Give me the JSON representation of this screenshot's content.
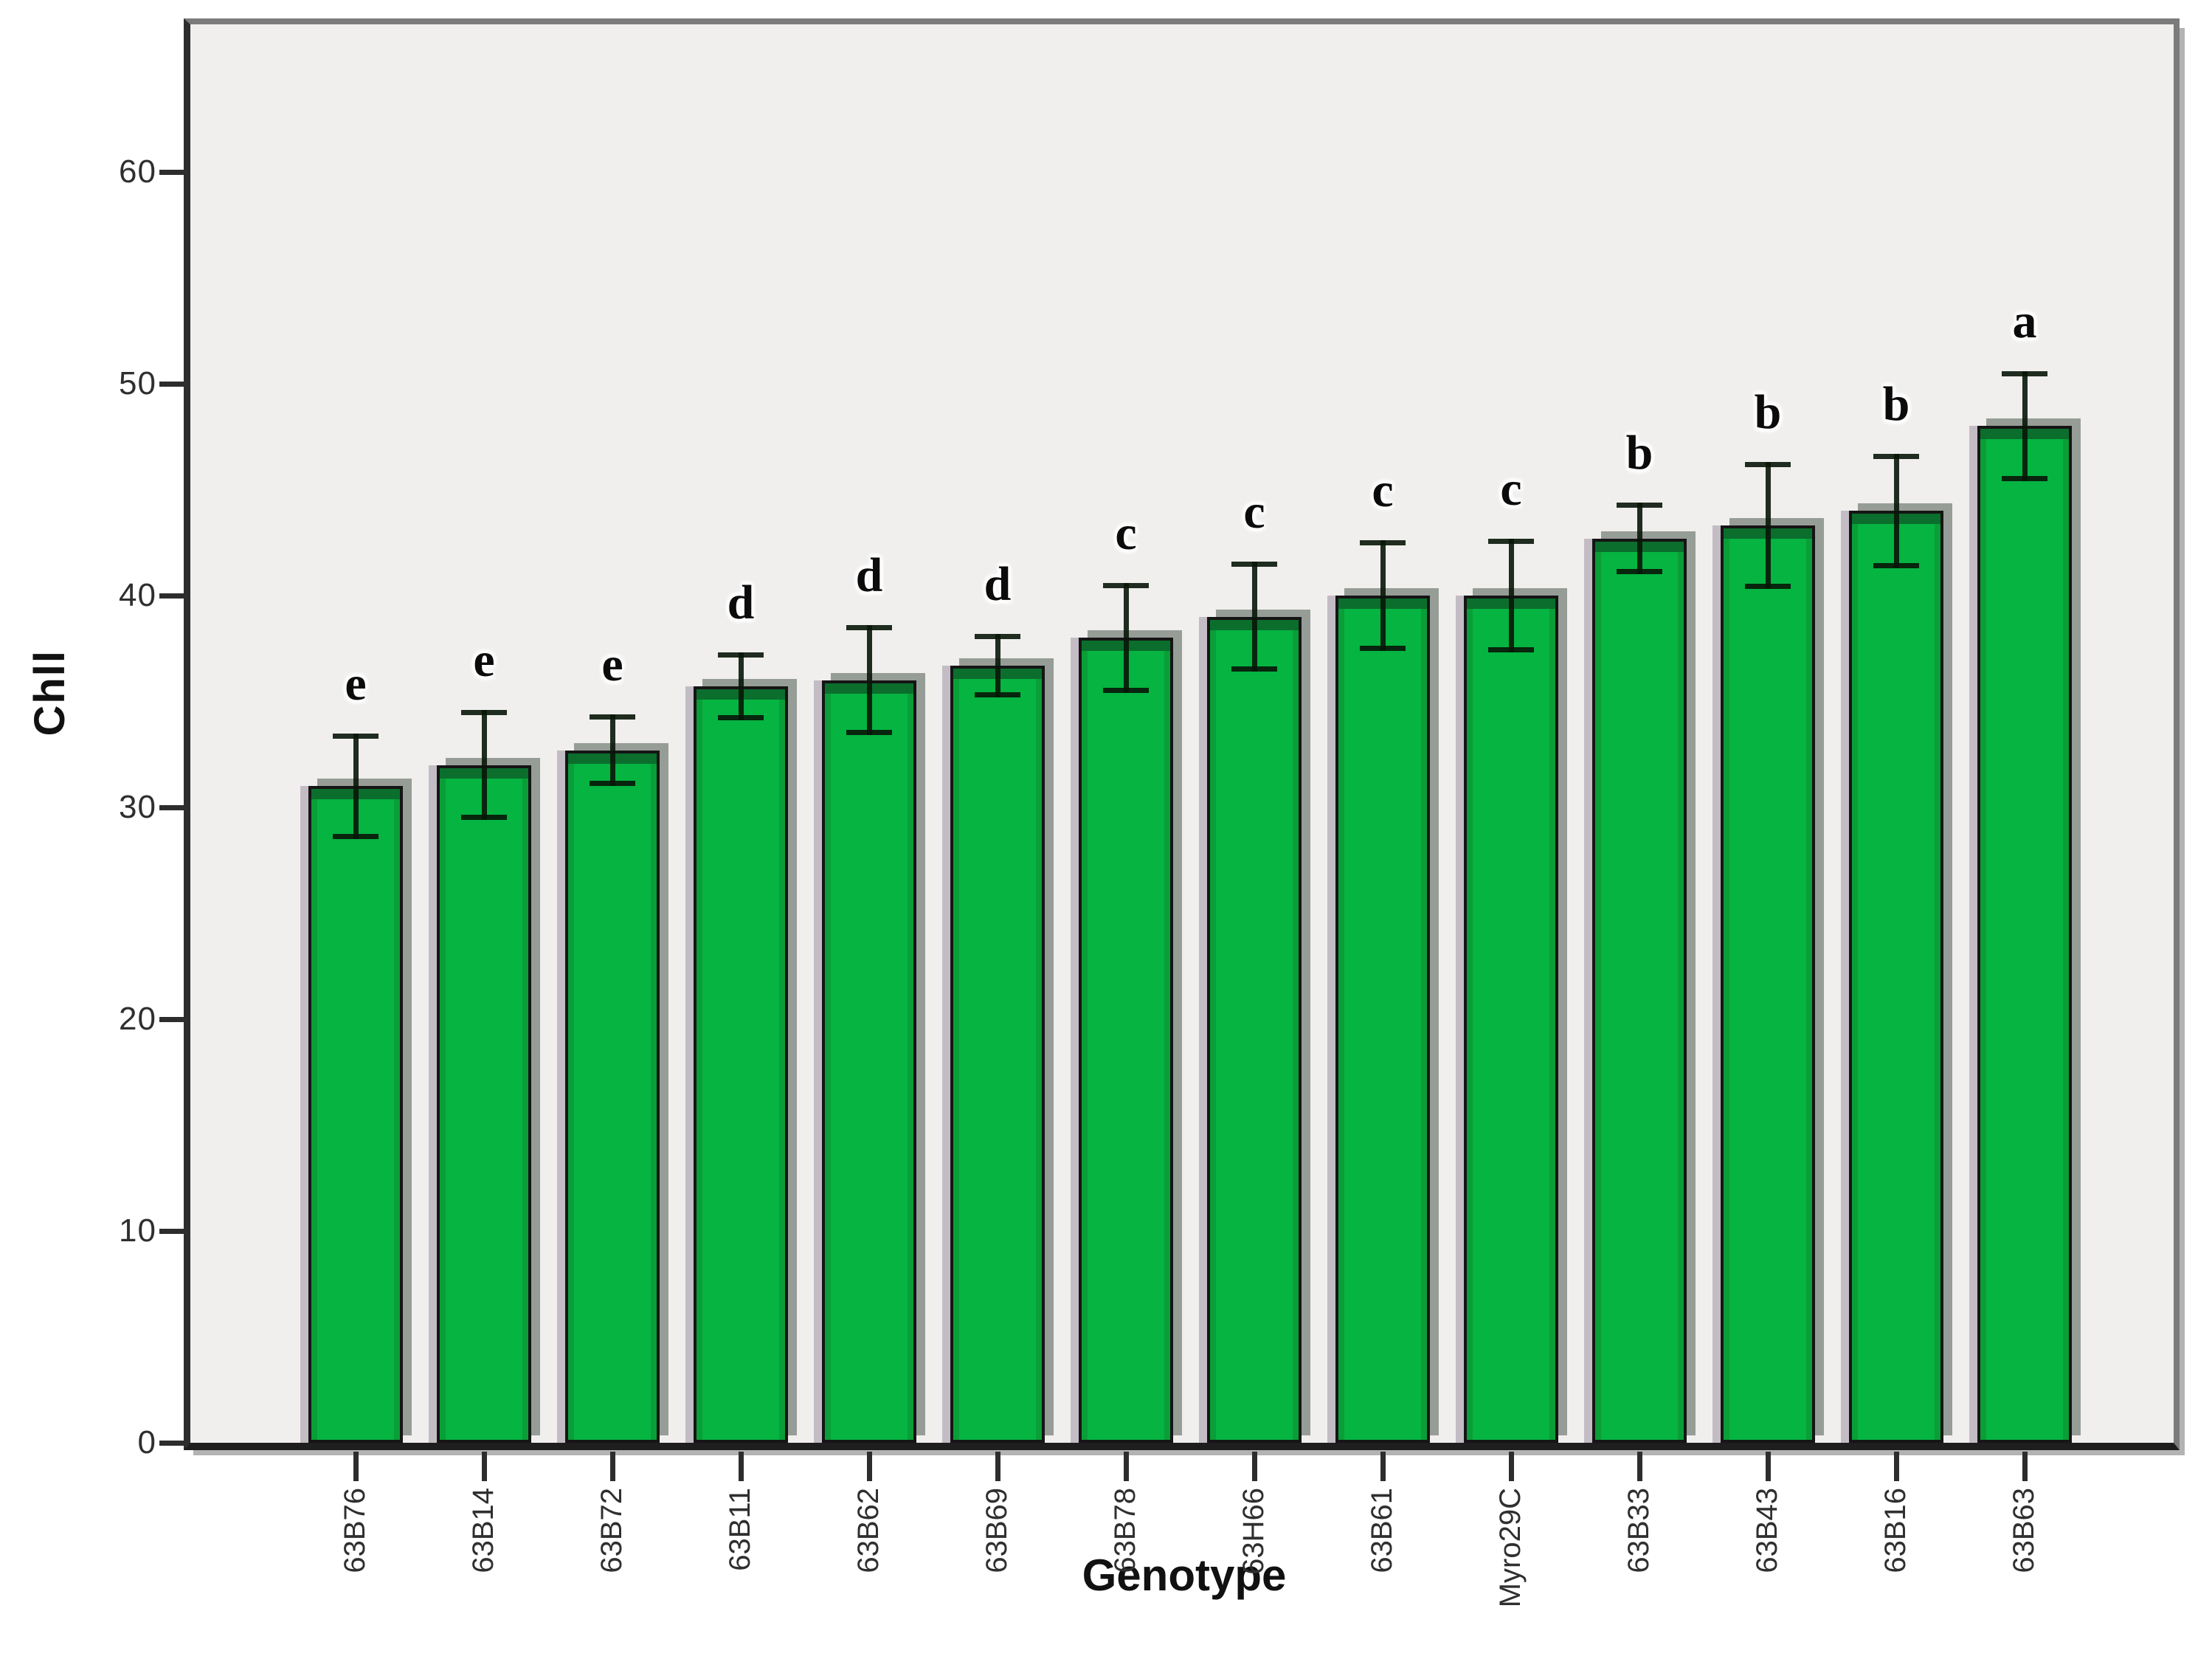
{
  "chart_data": {
    "type": "bar",
    "title": "",
    "xlabel": "Genotype",
    "ylabel": "Chll",
    "categories": [
      "63B76",
      "63B14",
      "63B72",
      "63B11",
      "63B62",
      "63B69",
      "63B78",
      "63H66",
      "63B61",
      "Myro29C",
      "63B33",
      "63B43",
      "63B16",
      "63B63"
    ],
    "values": [
      31,
      32,
      32.7,
      35.7,
      36,
      36.7,
      38,
      39,
      40,
      40,
      42.7,
      43.3,
      44,
      48
    ],
    "errors": [
      2.5,
      2.6,
      1.7,
      1.6,
      2.6,
      1.5,
      2.6,
      2.6,
      2.6,
      2.7,
      1.7,
      3.0,
      2.7,
      2.6
    ],
    "sig_letters": [
      "e",
      "e",
      "e",
      "d",
      "d",
      "d",
      "c",
      "c",
      "c",
      "c",
      "b",
      "b",
      "b",
      "a"
    ],
    "yticks": [
      0,
      10,
      20,
      30,
      40,
      50,
      60
    ],
    "ylim": [
      0,
      67
    ],
    "grid": false,
    "legend": "none",
    "colors": {
      "bar_fill": "#05b441",
      "bar_side_edge": "#0a9e38",
      "bar_top_edge": "#0b6e2d",
      "bar_outline": "#151515",
      "shadow_dark": "#969d96",
      "shadow_light": "#c4bcc5",
      "error_bar": "rgba(8,22,8,0.90)",
      "plot_bg": "#f0efed",
      "frame_gray": "#7b7b7b",
      "axis_dark": "#2d2d2d",
      "tick_text": "#2f2f2f",
      "title_text": "#111111"
    }
  }
}
